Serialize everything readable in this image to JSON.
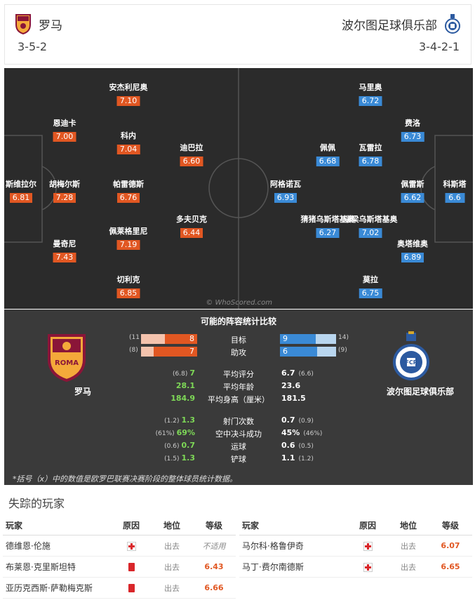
{
  "header": {
    "home": {
      "name": "罗马",
      "formation": "3-5-2"
    },
    "away": {
      "name": "波尔图足球俱乐部",
      "formation": "3-4-2-1"
    }
  },
  "colors": {
    "home": "#e15722",
    "away": "#3a8ad6",
    "pitch": "#2b2b2b",
    "better_stat": "#7ed957"
  },
  "pitch": {
    "home_players": [
      {
        "name": "斯维拉尔",
        "rating": "6.81"
      },
      {
        "name": "恩迪卡",
        "rating": "7.00"
      },
      {
        "name": "胡梅尔斯",
        "rating": "7.28"
      },
      {
        "name": "曼奇尼",
        "rating": "7.43"
      },
      {
        "name": "安杰利尼奥",
        "rating": "7.10"
      },
      {
        "name": "科内",
        "rating": "7.04"
      },
      {
        "name": "帕雷德斯",
        "rating": "6.76"
      },
      {
        "name": "佩莱格里尼",
        "rating": "7.19"
      },
      {
        "name": "切利克",
        "rating": "6.85"
      },
      {
        "name": "迪巴拉",
        "rating": "6.60"
      },
      {
        "name": "多夫贝克",
        "rating": "6.44"
      }
    ],
    "away_players": [
      {
        "name": "科斯塔",
        "rating": "6.6"
      },
      {
        "name": "费洛",
        "rating": "6.73"
      },
      {
        "name": "佩雷斯",
        "rating": "6.62"
      },
      {
        "name": "奥塔维奥",
        "rating": "6.89"
      },
      {
        "name": "马里奥",
        "rating": "6.72"
      },
      {
        "name": "瓦雷拉",
        "rating": "6.78"
      },
      {
        "name": "瑙梁乌斯塔基奥",
        "rating": "7.02"
      },
      {
        "name": "莫拉",
        "rating": "6.75"
      },
      {
        "name": "佩佩",
        "rating": "6.68"
      },
      {
        "name": "猜猪乌斯塔基奥",
        "rating": "6.27"
      },
      {
        "name": "阿格诺瓦",
        "rating": "6.93"
      }
    ],
    "watermark": "© WhoScored.com"
  },
  "stats": {
    "title": "可能的阵容统计比较",
    "home_club": "罗马",
    "away_club": "波尔图足球俱乐部",
    "bars": [
      {
        "label": "目标",
        "home": 8,
        "home_season": "(11",
        "away": 9,
        "away_season": "14)",
        "max": 14
      },
      {
        "label": "助攻",
        "home": 7,
        "home_season": "(8)",
        "away": 6,
        "away_season": "(9)",
        "max": 9
      }
    ],
    "rows": [
      {
        "label": "平均评分",
        "home": "7",
        "home_season": "(6.8)",
        "away": "6.7",
        "away_season": "(6.6)"
      },
      {
        "label": "平均年龄",
        "home": "28.1",
        "home_season": "",
        "away": "23.6",
        "away_season": ""
      },
      {
        "label": "平均身高（厘米）",
        "home": "184.9",
        "home_season": "",
        "away": "181.5",
        "away_season": ""
      },
      {
        "label": "射门次数",
        "home": "1.3",
        "home_season": "(1.2)",
        "away": "0.7",
        "away_season": "(0.9)"
      },
      {
        "label": "空中决斗成功",
        "home": "69%",
        "home_season": "(61%)",
        "away": "45%",
        "away_season": "(46%)"
      },
      {
        "label": "运球",
        "home": "0.7",
        "home_season": "(0.6)",
        "away": "0.6",
        "away_season": "(0.5)"
      },
      {
        "label": "铲球",
        "home": "1.3",
        "home_season": "(1.5)",
        "away": "1.1",
        "away_season": "(1.2)"
      }
    ],
    "note": "*括号（x）中的数值是欧罗巴联赛决赛阶段的整体球员统计数据。"
  },
  "missing": {
    "title": "失踪的玩家",
    "headers": {
      "player": "玩家",
      "reason": "原因",
      "position": "地位",
      "rating": "等级"
    },
    "home": [
      {
        "player": "德维恩·伦施",
        "reason": "injury",
        "position": "出去",
        "rating": "不适用"
      },
      {
        "player": "布莱恩·克里斯坦特",
        "reason": "red-card",
        "position": "出去",
        "rating": "6.43"
      },
      {
        "player": "亚历克西斯·萨勒梅克斯",
        "reason": "red-card",
        "position": "出去",
        "rating": "6.66"
      }
    ],
    "away": [
      {
        "player": "马尔科·格鲁伊奇",
        "reason": "injury",
        "position": "出去",
        "rating": "6.07"
      },
      {
        "player": "马丁·费尔南德斯",
        "reason": "injury",
        "position": "出去",
        "rating": "6.65"
      }
    ]
  }
}
